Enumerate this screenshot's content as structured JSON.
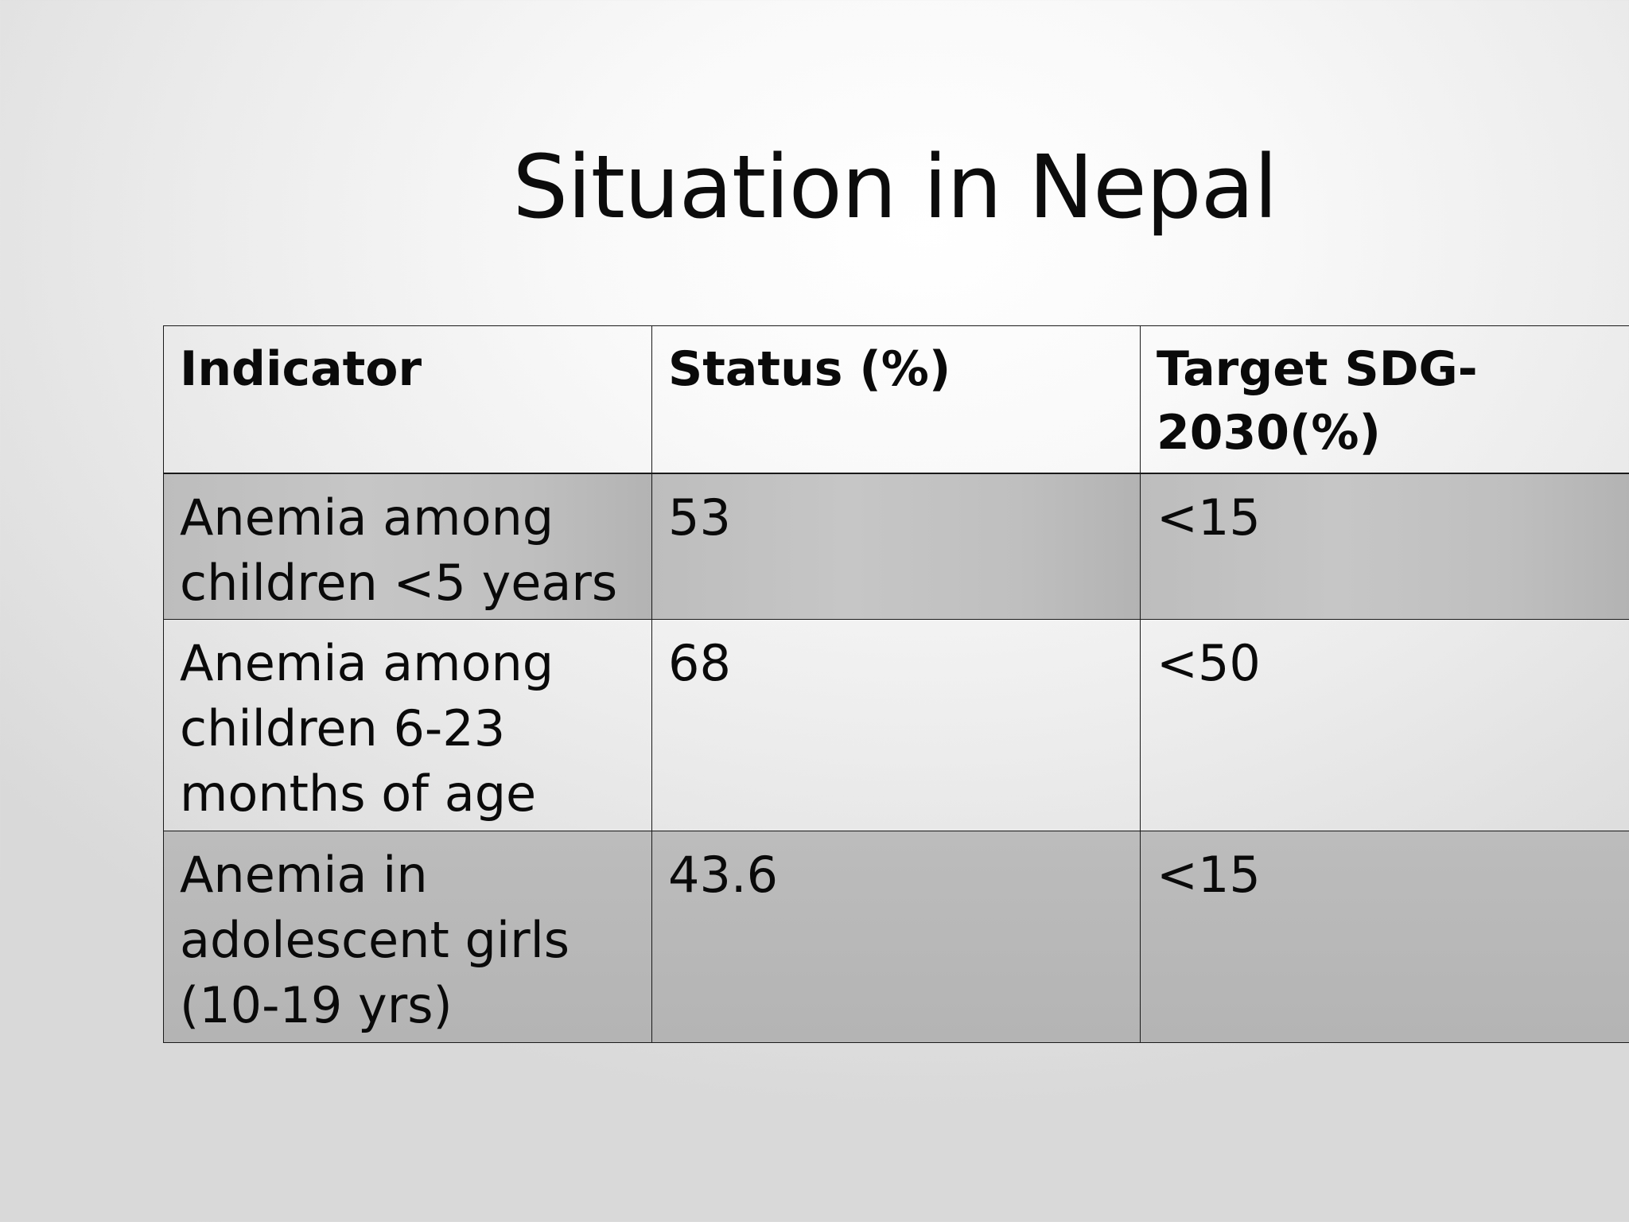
{
  "slide": {
    "title": "Situation in Nepal"
  },
  "table": {
    "headers": [
      "Indicator",
      "Status  (%)",
      "Target SDG-2030(%)"
    ],
    "rows": [
      {
        "indicator": "Anemia among children <5 years",
        "status": "53",
        "target": "<15"
      },
      {
        "indicator": "Anemia among children 6-23 months of age",
        "status": "68",
        "target": "<50"
      },
      {
        "indicator": "Anemia in adolescent girls (10-19 yrs)",
        "status": "43.6",
        "target": "<15"
      }
    ]
  }
}
